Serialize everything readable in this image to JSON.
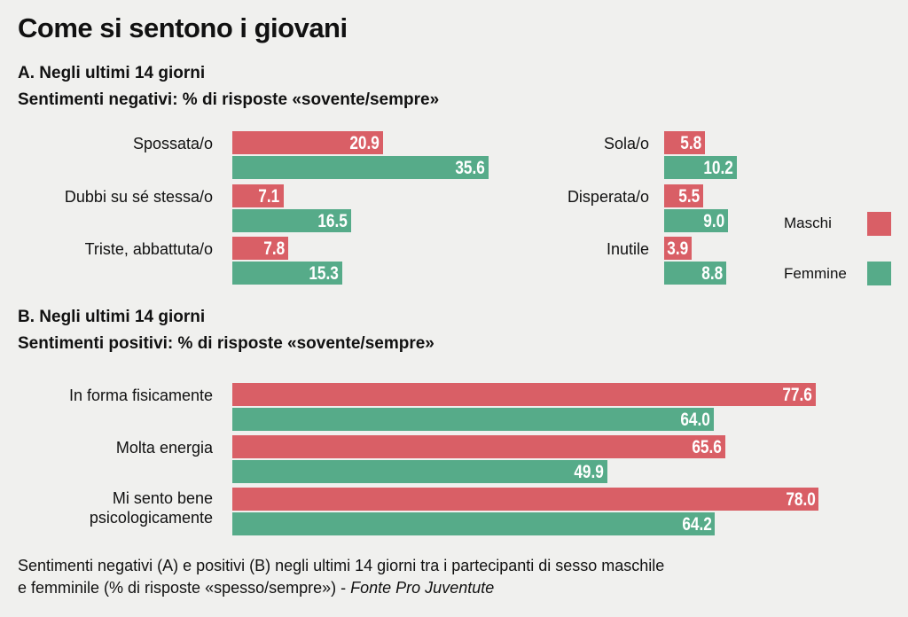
{
  "title": "Come si sentono i giovani",
  "colors": {
    "maschi": "#d95f66",
    "femmine": "#56ab89",
    "background": "#f0f0ee"
  },
  "chart_data": [
    {
      "type": "bar",
      "orientation": "horizontal",
      "title": "A. Negli ultimi 14 giorni",
      "subtitle": "Sentimenti negativi: % di risposte «sovente/sempre»",
      "categories": [
        "Spossata/o",
        "Dubbi su sé stessa/o",
        "Triste, abbattuta/o",
        "Sola/o",
        "Disperata/o",
        "Inutile"
      ],
      "series": [
        {
          "name": "Maschi",
          "values": [
            20.9,
            7.1,
            7.8,
            5.8,
            5.5,
            3.9
          ],
          "labels": [
            "20.9",
            "7.1",
            "7.8",
            "5.8",
            "5.5",
            "3.9"
          ]
        },
        {
          "name": "Femmine",
          "values": [
            35.6,
            16.5,
            15.3,
            10.2,
            9.0,
            8.8
          ],
          "labels": [
            "35.6",
            "16.5",
            "15.3",
            "10.2",
            "9.0",
            "8.8"
          ]
        }
      ]
    },
    {
      "type": "bar",
      "orientation": "horizontal",
      "title": "B. Negli ultimi 14 giorni",
      "subtitle": "Sentimenti positivi: % di risposte «sovente/sempre»",
      "categories": [
        "In forma fisicamente",
        "Molta energia",
        "Mi sento bene psicologicamente"
      ],
      "category_lines": [
        [
          "In forma fisicamente"
        ],
        [
          "Molta energia"
        ],
        [
          "Mi sento bene",
          "psicologicamente"
        ]
      ],
      "series": [
        {
          "name": "Maschi",
          "values": [
            77.6,
            65.6,
            78.0
          ],
          "labels": [
            "77.6",
            "65.6",
            "78.0"
          ]
        },
        {
          "name": "Femmine",
          "values": [
            64.0,
            49.9,
            64.2
          ],
          "labels": [
            "64.0",
            "49.9",
            "64.2"
          ]
        }
      ]
    }
  ],
  "legend": {
    "maschi": "Maschi",
    "femmine": "Femmine",
    "placement": "right"
  },
  "footer": {
    "line1": "Sentimenti negativi (A) e positivi (B) negli ultimi 14 giorni tra i partecipanti di sesso maschile",
    "line2": "e femminile (% di risposte «spesso/sempre») - ",
    "source": "Fonte Pro Juventute"
  }
}
